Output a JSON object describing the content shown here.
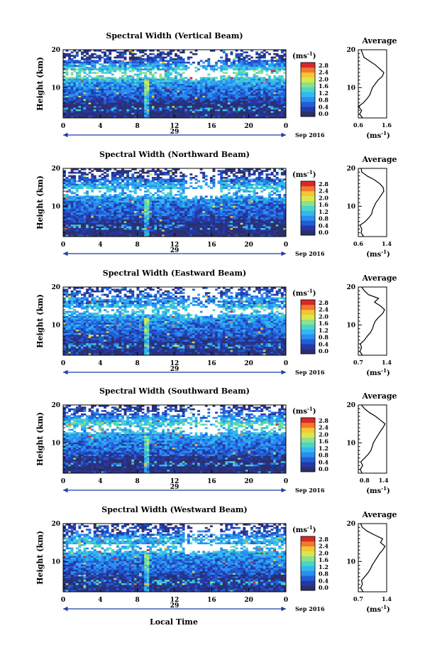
{
  "figure": {
    "xlabel": "Local Time",
    "month_label": "Sep 2016",
    "day_label": "29",
    "ylabel": "Height (km)",
    "unit_label": "(ms",
    "unit_exp": "-1",
    "avg_title": "Average",
    "avg_unit_label": "(ms",
    "avg_unit_exp": "-1"
  },
  "colorbar": {
    "ticks": [
      "0.0",
      "0.4",
      "0.8",
      "1.2",
      "1.6",
      "2.0",
      "2.4",
      "2.8"
    ],
    "colors": [
      "#2b2f6b",
      "#2637a8",
      "#1f5fd6",
      "#2a8ef0",
      "#32b8f0",
      "#49d6c8",
      "#8fe08a",
      "#d6e84a",
      "#f6c437",
      "#f1792b",
      "#d8282a"
    ]
  },
  "chart_data": [
    {
      "type": "heatmap",
      "title": "Spectral Width (Vertical Beam)",
      "x_ticks": [
        "0",
        "4",
        "8",
        "12",
        "16",
        "20",
        "0"
      ],
      "xlim": [
        0,
        24
      ],
      "ylim": [
        2,
        20
      ],
      "y_ticks": [
        "20",
        "10"
      ],
      "clim": [
        0.0,
        2.8
      ],
      "average_profile": {
        "xlim": [
          0.6,
          1.6
        ],
        "x_ticks": [
          "0.6",
          "1.6"
        ],
        "y_ticks": [
          "20",
          "10"
        ],
        "height_km": [
          2,
          3,
          4,
          5,
          6,
          7,
          8,
          9,
          10,
          11,
          12,
          13,
          14,
          15,
          16,
          17,
          18,
          19,
          20
        ],
        "value": [
          0.75,
          0.65,
          0.72,
          0.6,
          0.78,
          0.9,
          1.0,
          1.05,
          1.1,
          1.2,
          1.3,
          1.45,
          1.5,
          1.35,
          1.2,
          1.0,
          0.8,
          0.75,
          0.7
        ]
      }
    },
    {
      "type": "heatmap",
      "title": "Spectral Width (Northward Beam)",
      "x_ticks": [
        "0",
        "4",
        "8",
        "12",
        "16",
        "20",
        "0"
      ],
      "xlim": [
        0,
        24
      ],
      "ylim": [
        2,
        20
      ],
      "y_ticks": [
        "20",
        "10"
      ],
      "clim": [
        0.0,
        2.8
      ],
      "average_profile": {
        "xlim": [
          0.6,
          1.4
        ],
        "x_ticks": [
          "0.6",
          "1.4"
        ],
        "y_ticks": [
          "20",
          "10"
        ],
        "height_km": [
          2,
          3,
          4,
          5,
          6,
          7,
          8,
          9,
          10,
          11,
          12,
          13,
          14,
          15,
          16,
          17,
          18,
          19,
          20
        ],
        "value": [
          0.75,
          0.68,
          0.7,
          0.65,
          0.8,
          0.9,
          0.98,
          1.0,
          1.05,
          1.1,
          1.18,
          1.25,
          1.32,
          1.3,
          1.2,
          1.05,
          0.85,
          0.7,
          0.68
        ]
      }
    },
    {
      "type": "heatmap",
      "title": "Spectral Width (Eastward Beam)",
      "x_ticks": [
        "0",
        "4",
        "8",
        "12",
        "16",
        "20",
        "0"
      ],
      "xlim": [
        0,
        24
      ],
      "ylim": [
        2,
        20
      ],
      "y_ticks": [
        "20",
        "10"
      ],
      "clim": [
        0.0,
        2.8
      ],
      "average_profile": {
        "xlim": [
          0.7,
          1.4
        ],
        "x_ticks": [
          "0.7",
          "1.4"
        ],
        "y_ticks": [
          "20",
          "10"
        ],
        "height_km": [
          2,
          3,
          4,
          5,
          6,
          7,
          8,
          9,
          10,
          11,
          12,
          13,
          14,
          15,
          16,
          17,
          18,
          19,
          20
        ],
        "value": [
          0.8,
          0.74,
          0.78,
          0.75,
          0.85,
          0.92,
          1.0,
          1.05,
          1.08,
          1.12,
          1.2,
          1.3,
          1.35,
          1.25,
          1.1,
          1.2,
          0.95,
          0.85,
          0.78
        ]
      }
    },
    {
      "type": "heatmap",
      "title": "Spectral Width (Southward Beam)",
      "x_ticks": [
        "0",
        "4",
        "8",
        "12",
        "16",
        "20",
        "0"
      ],
      "xlim": [
        0,
        24
      ],
      "ylim": [
        2,
        20
      ],
      "y_ticks": [
        "20",
        "10"
      ],
      "clim": [
        0.0,
        2.8
      ],
      "average_profile": {
        "xlim": [
          0.6,
          1.5
        ],
        "x_ticks": [
          "0.8",
          "1.4"
        ],
        "x_tick_values": [
          0.8,
          1.4
        ],
        "y_ticks": [
          "20",
          "10"
        ],
        "height_km": [
          2,
          3,
          4,
          5,
          6,
          7,
          8,
          9,
          10,
          11,
          12,
          13,
          14,
          15,
          16,
          17,
          18,
          19,
          20
        ],
        "value": [
          0.72,
          0.66,
          0.74,
          0.68,
          0.8,
          0.92,
          1.0,
          1.04,
          1.08,
          1.15,
          1.22,
          1.3,
          1.38,
          1.45,
          1.3,
          1.15,
          0.95,
          0.8,
          0.7
        ]
      }
    },
    {
      "type": "heatmap",
      "title": "Spectral Width (Westward Beam)",
      "x_ticks": [
        "0",
        "4",
        "8",
        "12",
        "16",
        "20",
        "0"
      ],
      "xlim": [
        0,
        24
      ],
      "ylim": [
        2,
        20
      ],
      "y_ticks": [
        "20",
        "10"
      ],
      "clim": [
        0.0,
        2.8
      ],
      "average_profile": {
        "xlim": [
          0.7,
          1.4
        ],
        "x_ticks": [
          "0.7",
          "1.4"
        ],
        "y_ticks": [
          "20",
          "10"
        ],
        "height_km": [
          2,
          3,
          4,
          5,
          6,
          7,
          8,
          9,
          10,
          11,
          12,
          13,
          14,
          15,
          16,
          17,
          18,
          19,
          20
        ],
        "value": [
          0.82,
          0.76,
          0.8,
          0.78,
          0.86,
          0.94,
          1.0,
          1.04,
          1.1,
          1.16,
          1.22,
          1.3,
          1.36,
          1.25,
          1.3,
          1.1,
          0.92,
          0.8,
          0.76
        ]
      }
    }
  ]
}
